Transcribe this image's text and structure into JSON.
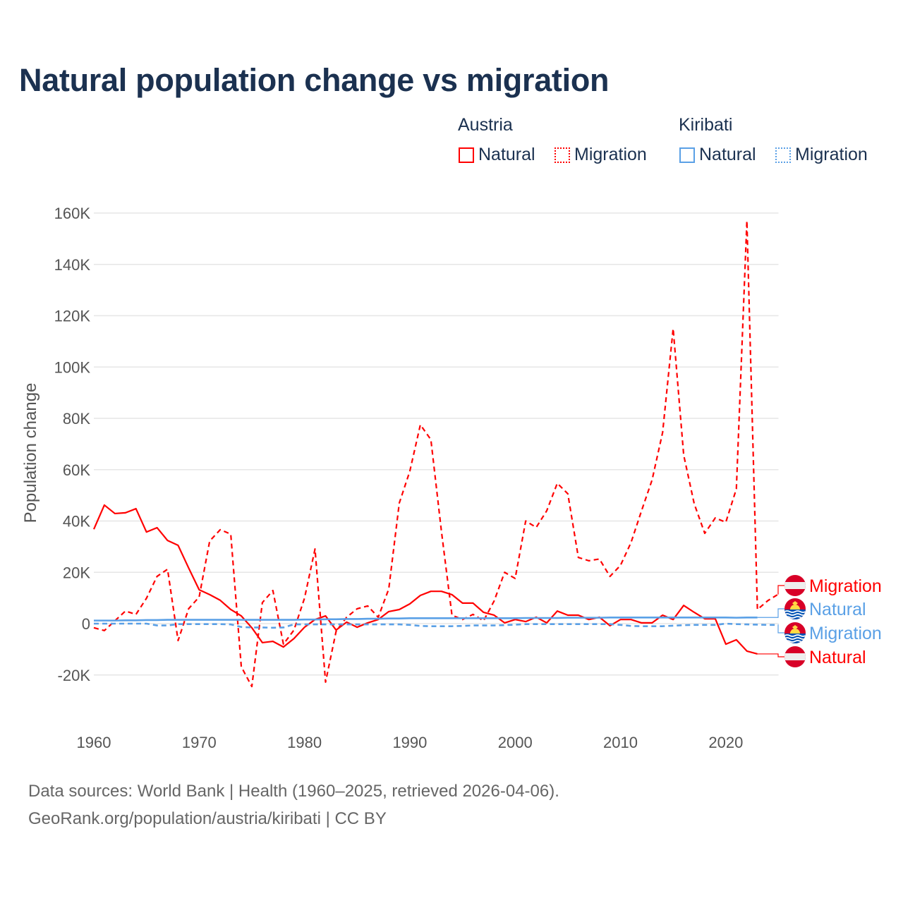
{
  "title": "Natural population change vs migration",
  "legend": {
    "groups": [
      {
        "name": "Austria",
        "items": [
          {
            "label": "Natural",
            "style": "solid"
          },
          {
            "label": "Migration",
            "style": "dotted"
          }
        ],
        "color": "#ff0000"
      },
      {
        "name": "Kiribati",
        "items": [
          {
            "label": "Natural",
            "style": "solid"
          },
          {
            "label": "Migration",
            "style": "dotted"
          }
        ],
        "color": "#5aa0e6"
      }
    ]
  },
  "footer": {
    "line1": "Data sources: World Bank | Health (1960–2025, retrieved 2026-04-06).",
    "line2": "GeoRank.org/population/austria/kiribati | CC BY"
  },
  "chart_data": {
    "type": "line",
    "title": "Natural population change vs migration",
    "xlabel": "",
    "ylabel": "Population change",
    "xlim": [
      1960,
      2025
    ],
    "ylim": [
      -20000,
      160000
    ],
    "grid": true,
    "legend_position": "top-right",
    "x_ticks": [
      {
        "value": 1960,
        "label": "1960"
      },
      {
        "value": 1970,
        "label": "1970"
      },
      {
        "value": 1980,
        "label": "1980"
      },
      {
        "value": 1990,
        "label": "1990"
      },
      {
        "value": 2000,
        "label": "2000"
      },
      {
        "value": 2010,
        "label": "2010"
      },
      {
        "value": 2020,
        "label": "2020"
      }
    ],
    "y_ticks": [
      {
        "value": -20000,
        "label": "-20K"
      },
      {
        "value": 0,
        "label": "0"
      },
      {
        "value": 20000,
        "label": "20K"
      },
      {
        "value": 40000,
        "label": "40K"
      },
      {
        "value": 60000,
        "label": "60K"
      },
      {
        "value": 80000,
        "label": "80K"
      },
      {
        "value": 100000,
        "label": "100K"
      },
      {
        "value": 120000,
        "label": "120K"
      },
      {
        "value": 140000,
        "label": "140K"
      },
      {
        "value": 160000,
        "label": "160K"
      }
    ],
    "series": [
      {
        "name": "Austria Natural",
        "end_label": "Natural",
        "flag": "austria",
        "color": "#ff0000",
        "dash": false,
        "start_year": 1960,
        "values": [
          36800,
          46200,
          42900,
          43200,
          44800,
          35700,
          37400,
          32400,
          30500,
          21700,
          13200,
          11300,
          9100,
          5500,
          3000,
          -1600,
          -7400,
          -6900,
          -9100,
          -5800,
          -1400,
          1600,
          3000,
          -2500,
          600,
          -1400,
          300,
          1600,
          4700,
          5500,
          7700,
          11000,
          12600,
          12600,
          11300,
          8000,
          8000,
          4400,
          3300,
          300,
          1600,
          800,
          2500,
          300,
          4900,
          3300,
          3300,
          1600,
          2500,
          -800,
          1600,
          1600,
          300,
          300,
          3300,
          1600,
          7100,
          4400,
          1900,
          1900,
          -8000,
          -6300,
          -10700,
          -11800
        ]
      },
      {
        "name": "Austria Migration",
        "end_label": "Migration",
        "flag": "austria",
        "color": "#ff0000",
        "dash": true,
        "start_year": 1960,
        "values": [
          -1600,
          -2700,
          1100,
          4900,
          3600,
          9900,
          18400,
          21200,
          -6600,
          5800,
          10400,
          32200,
          36600,
          34900,
          -16800,
          -24500,
          8200,
          12900,
          -8000,
          -2500,
          9900,
          29100,
          -22800,
          -3000,
          2500,
          5800,
          6900,
          2500,
          13500,
          47000,
          59400,
          77500,
          71700,
          36000,
          3300,
          1600,
          3600,
          1100,
          8800,
          20000,
          17600,
          40000,
          37500,
          44000,
          54700,
          50600,
          25800,
          24500,
          25200,
          18400,
          22700,
          31600,
          44000,
          56000,
          74500,
          115000,
          65700,
          46700,
          35200,
          41200,
          39500,
          52500,
          157000,
          5500,
          9000,
          11500
        ]
      },
      {
        "name": "Kiribati Natural",
        "end_label": "Natural",
        "flag": "kiribati",
        "color": "#5aa0e6",
        "dash": false,
        "start_year": 1960,
        "values": [
          1200,
          1200,
          1200,
          1300,
          1300,
          1400,
          1400,
          1500,
          1500,
          1500,
          1500,
          1500,
          1500,
          1500,
          1500,
          1500,
          1500,
          1500,
          1500,
          1500,
          1600,
          1600,
          1700,
          1700,
          1800,
          1800,
          1900,
          1900,
          2000,
          2000,
          2100,
          2100,
          2100,
          2100,
          2100,
          2100,
          2100,
          2100,
          2100,
          2100,
          2100,
          2200,
          2200,
          2200,
          2200,
          2300,
          2300,
          2300,
          2300,
          2400,
          2400,
          2400,
          2400,
          2400,
          2400,
          2400,
          2400,
          2400,
          2400,
          2400,
          2400,
          2300,
          2400,
          2400
        ]
      },
      {
        "name": "Kiribati Migration",
        "end_label": "Migration",
        "flag": "kiribati",
        "color": "#5aa0e6",
        "dash": true,
        "start_year": 1960,
        "values": [
          0,
          0,
          0,
          0,
          0,
          0,
          -700,
          -700,
          -200,
          -200,
          -200,
          -200,
          -200,
          -300,
          -1300,
          -1500,
          -1500,
          -1600,
          -1500,
          -300,
          -300,
          -300,
          -300,
          -300,
          -300,
          -300,
          -300,
          -300,
          -300,
          -300,
          -500,
          -900,
          -1000,
          -1000,
          -1000,
          -900,
          -700,
          -700,
          -700,
          -600,
          -400,
          -200,
          -200,
          -200,
          -200,
          -200,
          -200,
          -200,
          -200,
          -200,
          -500,
          -900,
          -1000,
          -1000,
          -1000,
          -800,
          -600,
          -500,
          -500,
          -500,
          0,
          -200,
          -300,
          -400,
          -500,
          -500
        ]
      }
    ]
  }
}
